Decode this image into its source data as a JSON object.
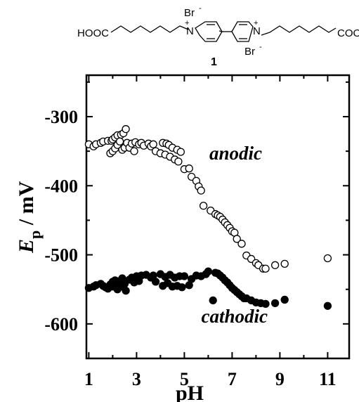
{
  "structure": {
    "left_group": "HOOC",
    "right_group": "COOH",
    "counterion_top": "Br",
    "counterion_bottom": "Br",
    "charge": "+",
    "anion_charge": "-",
    "nitrogen": "N",
    "compound_number": "1"
  },
  "chart_data": {
    "type": "scatter",
    "title": "",
    "xlabel": "pH",
    "ylabel_main": "E",
    "ylabel_sub": "p",
    "ylabel_unit": " / mV",
    "xlim": [
      0.9,
      11.9
    ],
    "ylim": [
      -650,
      -240
    ],
    "xticks": [
      1,
      3,
      5,
      7,
      9,
      11
    ],
    "yticks": [
      -600,
      -500,
      -400,
      -300
    ],
    "grid": false,
    "series": [
      {
        "name": "anodic",
        "marker": "open-circle",
        "points": [
          [
            1.0,
            -340
          ],
          [
            1.2,
            -343
          ],
          [
            1.3,
            -340
          ],
          [
            1.5,
            -338
          ],
          [
            1.6,
            -336
          ],
          [
            1.8,
            -335
          ],
          [
            1.9,
            -353
          ],
          [
            1.95,
            -335
          ],
          [
            2.0,
            -350
          ],
          [
            2.0,
            -333
          ],
          [
            2.1,
            -346
          ],
          [
            2.1,
            -330
          ],
          [
            2.2,
            -341
          ],
          [
            2.2,
            -327
          ],
          [
            2.3,
            -336
          ],
          [
            2.35,
            -326
          ],
          [
            2.4,
            -348
          ],
          [
            2.45,
            -324
          ],
          [
            2.5,
            -345
          ],
          [
            2.55,
            -318
          ],
          [
            2.6,
            -338
          ],
          [
            2.7,
            -345
          ],
          [
            2.8,
            -339
          ],
          [
            2.9,
            -350
          ],
          [
            2.95,
            -337
          ],
          [
            3.1,
            -340
          ],
          [
            3.2,
            -338
          ],
          [
            3.3,
            -342
          ],
          [
            3.5,
            -339
          ],
          [
            3.6,
            -343
          ],
          [
            3.7,
            -340
          ],
          [
            3.8,
            -350
          ],
          [
            4.0,
            -353
          ],
          [
            4.1,
            -338
          ],
          [
            4.2,
            -355
          ],
          [
            4.25,
            -339
          ],
          [
            4.35,
            -341
          ],
          [
            4.4,
            -358
          ],
          [
            4.5,
            -345
          ],
          [
            4.6,
            -362
          ],
          [
            4.7,
            -348
          ],
          [
            4.75,
            -365
          ],
          [
            4.85,
            -351
          ],
          [
            5.0,
            -376
          ],
          [
            5.2,
            -375
          ],
          [
            5.3,
            -387
          ],
          [
            5.5,
            -393
          ],
          [
            5.6,
            -401
          ],
          [
            5.7,
            -407
          ],
          [
            5.8,
            -429
          ],
          [
            6.1,
            -436
          ],
          [
            6.3,
            -441
          ],
          [
            6.4,
            -443
          ],
          [
            6.5,
            -445
          ],
          [
            6.6,
            -449
          ],
          [
            6.7,
            -453
          ],
          [
            6.8,
            -457
          ],
          [
            6.9,
            -461
          ],
          [
            7.0,
            -466
          ],
          [
            7.1,
            -468
          ],
          [
            7.2,
            -477
          ],
          [
            7.4,
            -484
          ],
          [
            7.6,
            -501
          ],
          [
            7.8,
            -506
          ],
          [
            8.0,
            -512
          ],
          [
            8.1,
            -515
          ],
          [
            8.3,
            -520
          ],
          [
            8.4,
            -520
          ],
          [
            8.8,
            -515
          ],
          [
            9.2,
            -513
          ],
          [
            11.0,
            -505
          ]
        ]
      },
      {
        "name": "cathodic",
        "marker": "filled-circle",
        "points": [
          [
            1.0,
            -548
          ],
          [
            1.2,
            -546
          ],
          [
            1.3,
            -544
          ],
          [
            1.5,
            -542
          ],
          [
            1.6,
            -545
          ],
          [
            1.7,
            -547
          ],
          [
            1.8,
            -549
          ],
          [
            1.9,
            -543
          ],
          [
            2.0,
            -539
          ],
          [
            2.0,
            -546
          ],
          [
            2.1,
            -537
          ],
          [
            2.15,
            -544
          ],
          [
            2.2,
            -550
          ],
          [
            2.3,
            -538
          ],
          [
            2.35,
            -546
          ],
          [
            2.4,
            -534
          ],
          [
            2.5,
            -542
          ],
          [
            2.55,
            -552
          ],
          [
            2.7,
            -536
          ],
          [
            2.8,
            -533
          ],
          [
            2.9,
            -540
          ],
          [
            3.0,
            -531
          ],
          [
            3.1,
            -538
          ],
          [
            3.2,
            -530
          ],
          [
            3.4,
            -529
          ],
          [
            3.6,
            -533
          ],
          [
            3.7,
            -530
          ],
          [
            3.8,
            -539
          ],
          [
            4.0,
            -528
          ],
          [
            4.1,
            -545
          ],
          [
            4.2,
            -532
          ],
          [
            4.3,
            -541
          ],
          [
            4.4,
            -529
          ],
          [
            4.5,
            -546
          ],
          [
            4.6,
            -533
          ],
          [
            4.7,
            -545
          ],
          [
            4.8,
            -531
          ],
          [
            4.9,
            -547
          ],
          [
            5.0,
            -531
          ],
          [
            5.2,
            -544
          ],
          [
            5.3,
            -535
          ],
          [
            5.5,
            -530
          ],
          [
            5.7,
            -531
          ],
          [
            5.9,
            -528
          ],
          [
            6.0,
            -524
          ],
          [
            6.2,
            -566
          ],
          [
            6.3,
            -526
          ],
          [
            6.4,
            -527
          ],
          [
            6.5,
            -530
          ],
          [
            6.6,
            -533
          ],
          [
            6.7,
            -537
          ],
          [
            6.8,
            -540
          ],
          [
            6.9,
            -544
          ],
          [
            7.0,
            -548
          ],
          [
            7.1,
            -551
          ],
          [
            7.2,
            -554
          ],
          [
            7.3,
            -557
          ],
          [
            7.4,
            -560
          ],
          [
            7.5,
            -563
          ],
          [
            7.6,
            -563
          ],
          [
            7.8,
            -566
          ],
          [
            8.0,
            -569
          ],
          [
            8.2,
            -570
          ],
          [
            8.4,
            -571
          ],
          [
            8.8,
            -570
          ],
          [
            9.2,
            -565
          ],
          [
            11.0,
            -574
          ]
        ]
      }
    ],
    "annotations": [
      {
        "text": "anodic",
        "x": 7.15,
        "y": -362
      },
      {
        "text": "cathodic",
        "x": 7.1,
        "y": -598
      }
    ]
  }
}
